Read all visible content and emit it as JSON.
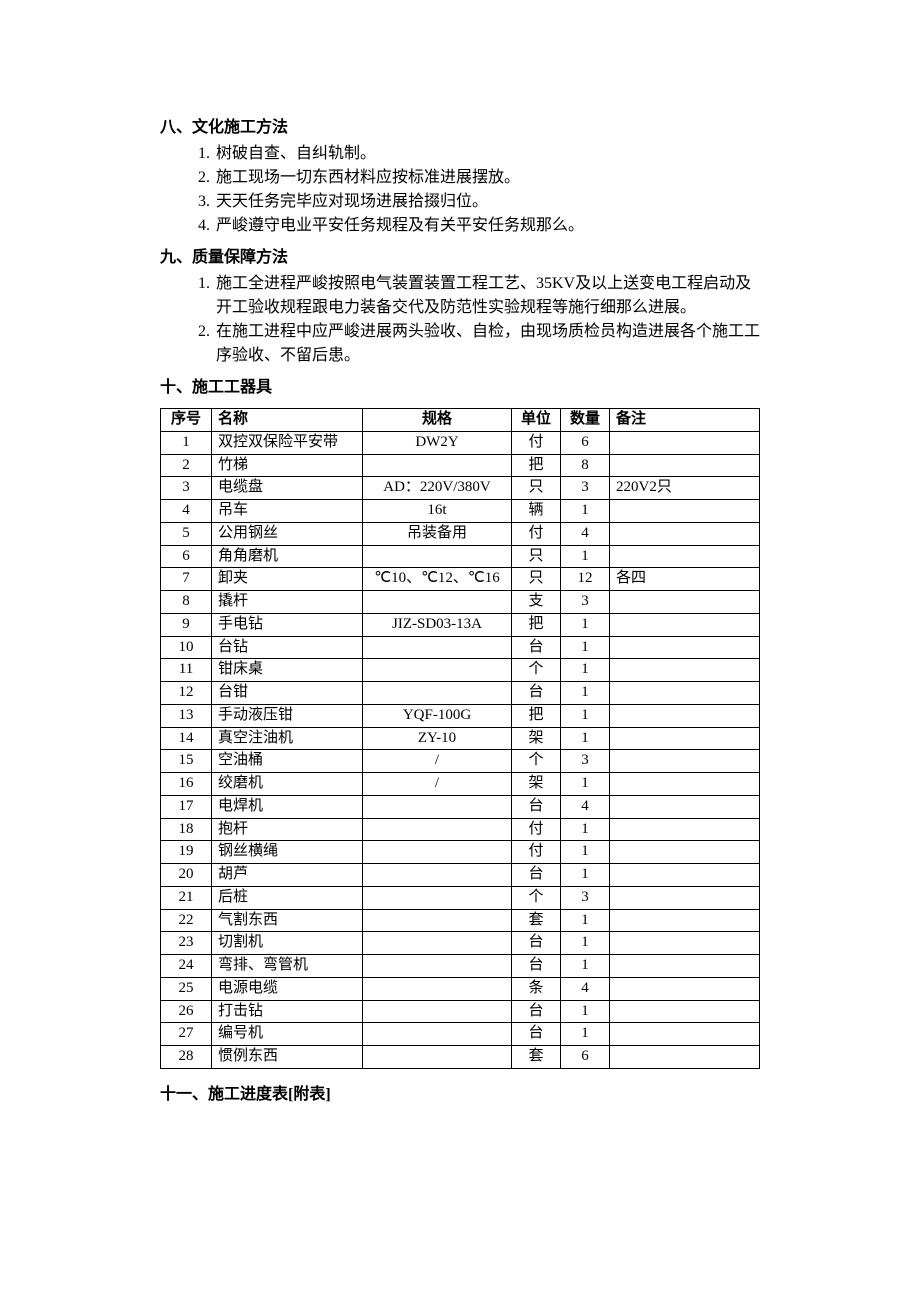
{
  "sections": {
    "s8": {
      "title": "八、文化施工方法",
      "items": [
        "树破自查、自纠轨制。",
        "施工现场一切东西材料应按标准进展摆放。",
        "天天任务完毕应对现场进展拾掇归位。",
        "严峻遵守电业平安任务规程及有关平安任务规那么。"
      ]
    },
    "s9": {
      "title": "九、质量保障方法",
      "items": [
        "施工全进程严峻按照电气装置装置工程工艺、35KV及以上送变电工程启动及开工验收规程跟电力装备交代及防范性实验规程等施行细那么进展。",
        "在施工进程中应严峻进展两头验收、自检，由现场质检员构造进展各个施工工序验收、不留后患。"
      ]
    },
    "s10": {
      "title": "十、施工工器具"
    },
    "s11": {
      "title": "十一、施工进度表[附表]"
    }
  },
  "table": {
    "headers": [
      "序号",
      "名称",
      "规格",
      "单位",
      "数量",
      "备注"
    ],
    "rows": [
      [
        "1",
        "双控双保险平安带",
        "DW2Y",
        "付",
        "6",
        ""
      ],
      [
        "2",
        "竹梯",
        "",
        "把",
        "8",
        ""
      ],
      [
        "3",
        "电缆盘",
        "AD：220V/380V",
        "只",
        "3",
        "220V2只"
      ],
      [
        "4",
        "吊车",
        "16t",
        "辆",
        "1",
        ""
      ],
      [
        "5",
        "公用钢丝",
        "吊装备用",
        "付",
        "4",
        ""
      ],
      [
        "6",
        "角角磨机",
        "",
        "只",
        "1",
        ""
      ],
      [
        "7",
        "卸夹",
        "℃10、℃12、℃16",
        "只",
        "12",
        "各四"
      ],
      [
        "8",
        "撬杆",
        "",
        "支",
        "3",
        ""
      ],
      [
        "9",
        "手电钻",
        "JIZ-SD03-13A",
        "把",
        "1",
        ""
      ],
      [
        "10",
        "台钻",
        "",
        "台",
        "1",
        ""
      ],
      [
        "11",
        "钳床桌",
        "",
        "个",
        "1",
        ""
      ],
      [
        "12",
        "台钳",
        "",
        "台",
        "1",
        ""
      ],
      [
        "13",
        "手动液压钳",
        "YQF-100G",
        "把",
        "1",
        ""
      ],
      [
        "14",
        "真空注油机",
        "ZY-10",
        "架",
        "1",
        ""
      ],
      [
        "15",
        "空油桶",
        "/",
        "个",
        "3",
        ""
      ],
      [
        "16",
        "绞磨机",
        "/",
        "架",
        "1",
        ""
      ],
      [
        "17",
        "电焊机",
        "",
        "台",
        "4",
        ""
      ],
      [
        "18",
        "抱杆",
        "",
        "付",
        "1",
        ""
      ],
      [
        "19",
        "钢丝横绳",
        "",
        "付",
        "1",
        ""
      ],
      [
        "20",
        "胡芦",
        "",
        "台",
        "1",
        ""
      ],
      [
        "21",
        "后桩",
        "",
        "个",
        "3",
        ""
      ],
      [
        "22",
        "气割东西",
        "",
        "套",
        "1",
        ""
      ],
      [
        "23",
        "切割机",
        "",
        "台",
        "1",
        ""
      ],
      [
        "24",
        "弯排、弯管机",
        "",
        "台",
        "1",
        ""
      ],
      [
        "25",
        "电源电缆",
        "",
        "条",
        "4",
        ""
      ],
      [
        "26",
        "打击钻",
        "",
        "台",
        "1",
        ""
      ],
      [
        "27",
        "编号机",
        "",
        "台",
        "1",
        ""
      ],
      [
        "28",
        "惯例东西",
        "",
        "套",
        "6",
        ""
      ]
    ]
  }
}
